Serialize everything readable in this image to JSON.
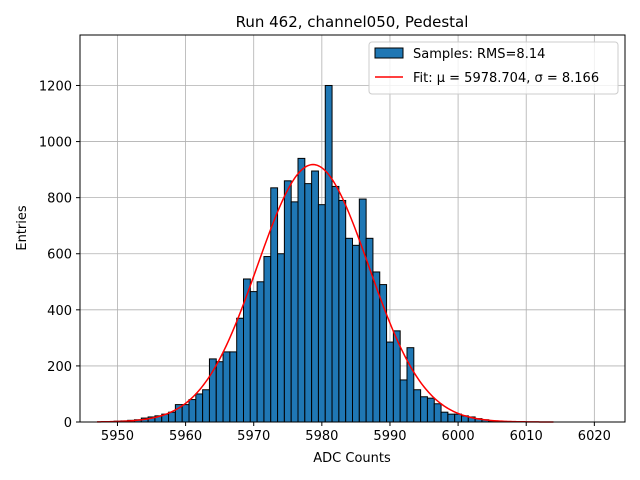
{
  "chart_data": {
    "type": "bar",
    "title": "Run 462, channel050, Pedestal",
    "xlabel": "ADC Counts",
    "ylabel": "Entries",
    "xlim": [
      5944.5,
      6024.5
    ],
    "ylim": [
      0,
      1380
    ],
    "xticks": [
      5950,
      5960,
      5970,
      5980,
      5990,
      6000,
      6010,
      6020
    ],
    "yticks": [
      0,
      200,
      400,
      600,
      800,
      1000,
      1200
    ],
    "grid": true,
    "legend_position": "top-right",
    "histogram": {
      "name": "Samples: RMS=8.14",
      "color": "#1f77b4",
      "bin_width": 1,
      "bins": [
        [
          5950,
          3
        ],
        [
          5951,
          4
        ],
        [
          5952,
          6
        ],
        [
          5953,
          8
        ],
        [
          5954,
          14
        ],
        [
          5955,
          18
        ],
        [
          5956,
          22
        ],
        [
          5957,
          28
        ],
        [
          5958,
          35
        ],
        [
          5959,
          62
        ],
        [
          5960,
          62
        ],
        [
          5961,
          80
        ],
        [
          5962,
          100
        ],
        [
          5963,
          115
        ],
        [
          5964,
          225
        ],
        [
          5965,
          215
        ],
        [
          5966,
          250
        ],
        [
          5967,
          250
        ],
        [
          5968,
          370
        ],
        [
          5969,
          510
        ],
        [
          5970,
          465
        ],
        [
          5971,
          500
        ],
        [
          5972,
          590
        ],
        [
          5973,
          835
        ],
        [
          5974,
          600
        ],
        [
          5975,
          860
        ],
        [
          5976,
          785
        ],
        [
          5977,
          940
        ],
        [
          5978,
          850
        ],
        [
          5979,
          895
        ],
        [
          5980,
          775
        ],
        [
          5981,
          1200
        ],
        [
          5982,
          840
        ],
        [
          5983,
          790
        ],
        [
          5984,
          655
        ],
        [
          5985,
          630
        ],
        [
          5986,
          795
        ],
        [
          5987,
          655
        ],
        [
          5988,
          535
        ],
        [
          5989,
          490
        ],
        [
          5990,
          285
        ],
        [
          5991,
          325
        ],
        [
          5992,
          150
        ],
        [
          5993,
          265
        ],
        [
          5994,
          115
        ],
        [
          5995,
          90
        ],
        [
          5996,
          85
        ],
        [
          5997,
          65
        ],
        [
          5998,
          35
        ],
        [
          5999,
          28
        ],
        [
          6000,
          28
        ],
        [
          6001,
          22
        ],
        [
          6002,
          18
        ],
        [
          6003,
          12
        ],
        [
          6004,
          8
        ],
        [
          6005,
          4
        ]
      ]
    },
    "fit": {
      "name": "Fit: μ = 5978.704, σ = 8.166",
      "color": "#ff0000",
      "mu": 5978.704,
      "sigma": 8.166,
      "amplitude": 918,
      "x_range": [
        5947,
        6014
      ]
    }
  }
}
